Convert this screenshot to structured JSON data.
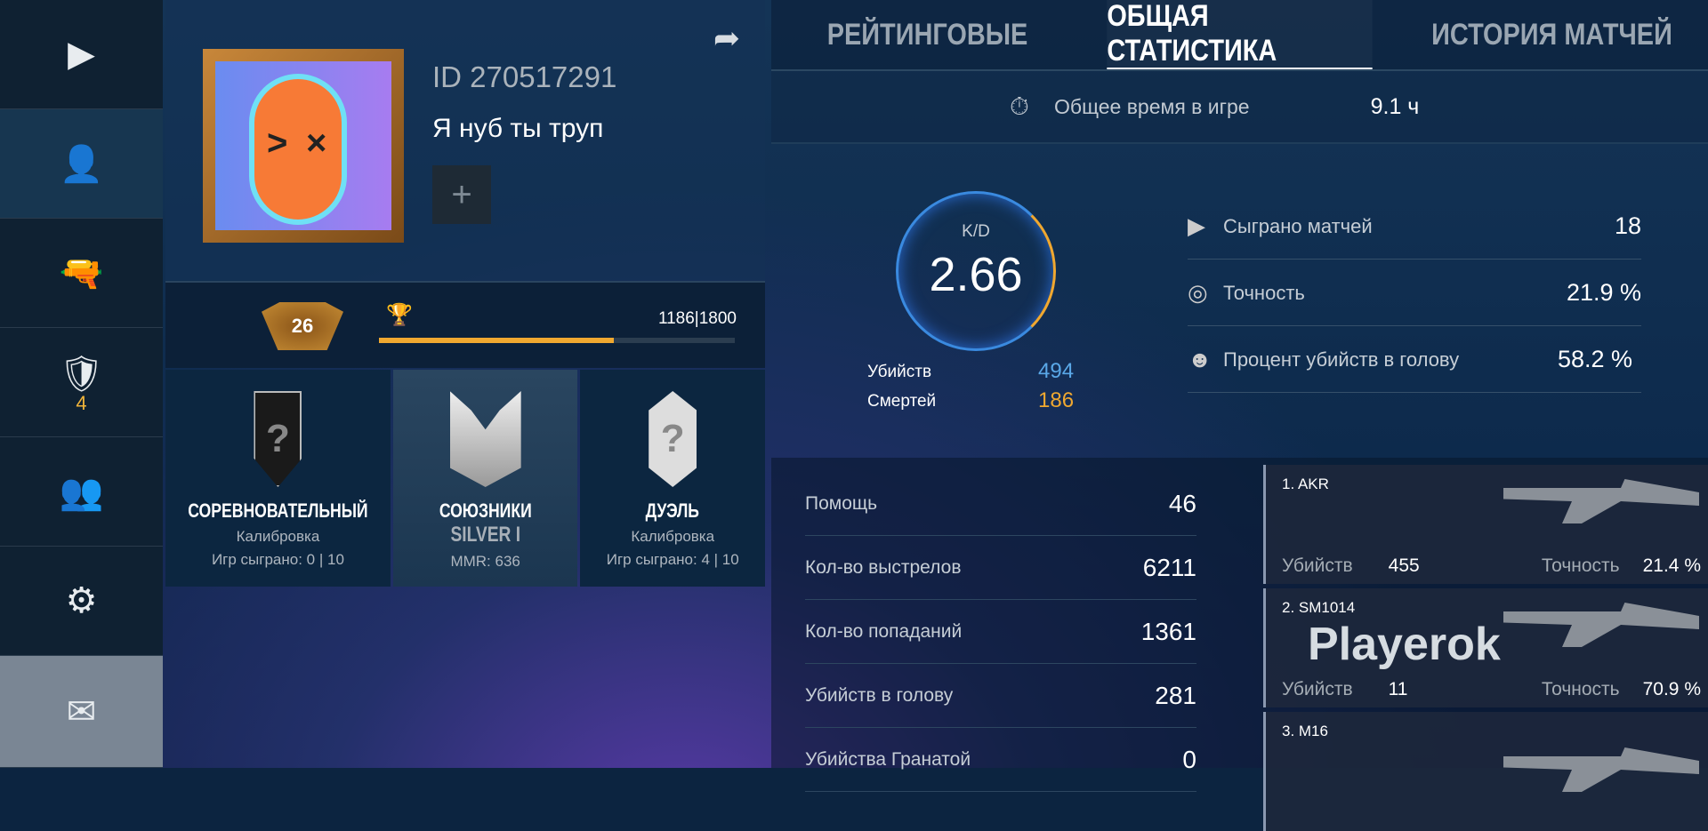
{
  "sidebar": {
    "items": [
      {
        "icon": "play-icon",
        "glyph": "▶"
      },
      {
        "icon": "user-icon",
        "glyph": "👤"
      },
      {
        "icon": "pistol-icon",
        "glyph": "🔫"
      },
      {
        "icon": "rank-badge-icon",
        "glyph": "🛡",
        "count": "4"
      },
      {
        "icon": "friends-icon",
        "glyph": "👥"
      },
      {
        "icon": "gear-icon",
        "glyph": "⚙"
      },
      {
        "icon": "mail-icon",
        "glyph": "✉"
      }
    ]
  },
  "profile": {
    "id": "ID 270517291",
    "name": "Я нуб ты труп",
    "add": "+",
    "share": "➦",
    "level": "26",
    "xp": "1186|1800",
    "xp_progress": 0.659
  },
  "modes": [
    {
      "title": "СОРЕВНОВАТЕЛЬНЫЙ",
      "badge": "?",
      "status": "Калибровка",
      "games": "Игр сыграно: 0 | 10"
    },
    {
      "title": "СОЮЗНИКИ",
      "rank": "SILVER I",
      "mmr": "MMR: 636"
    },
    {
      "title": "ДУЭЛЬ",
      "badge": "?",
      "status": "Калибровка",
      "games": "Игр сыграно: 4 | 10"
    }
  ],
  "tabs": [
    "РЕЙТИНГОВЫЕ",
    "ОБЩАЯ СТАТИСТИКА",
    "ИСТОРИЯ МАТЧЕЙ"
  ],
  "playtime": {
    "label": "Общее время в игре",
    "value": "9.1 ч"
  },
  "kd": {
    "label": "K/D",
    "value": "2.66",
    "kills_label": "Убийств",
    "kills": "494",
    "deaths_label": "Смертей",
    "deaths": "186",
    "kills_color": "#5aa8e8",
    "deaths_color": "#f0a830"
  },
  "summary": [
    {
      "label": "Сыграно матчей",
      "value": "18"
    },
    {
      "label": "Точность",
      "value": "21.9 %"
    },
    {
      "label": "Процент убийств в голову",
      "value": "58.2 %"
    }
  ],
  "stats": [
    {
      "label": "Помощь",
      "value": "46"
    },
    {
      "label": "Кол-во выстрелов",
      "value": "6211"
    },
    {
      "label": "Кол-во попаданий",
      "value": "1361"
    },
    {
      "label": "Убийств в голову",
      "value": "281"
    },
    {
      "label": "Убийства Гранатой",
      "value": "0"
    }
  ],
  "weapons": [
    {
      "name": "1. AKR",
      "kills_label": "Убийств",
      "kills": "455",
      "acc_label": "Точность",
      "acc": "21.4 %"
    },
    {
      "name": "2. SM1014",
      "kills_label": "Убийств",
      "kills": "11",
      "acc_label": "Точность",
      "acc": "70.9 %"
    },
    {
      "name": "3. M16"
    }
  ],
  "watermark": "Playerok"
}
